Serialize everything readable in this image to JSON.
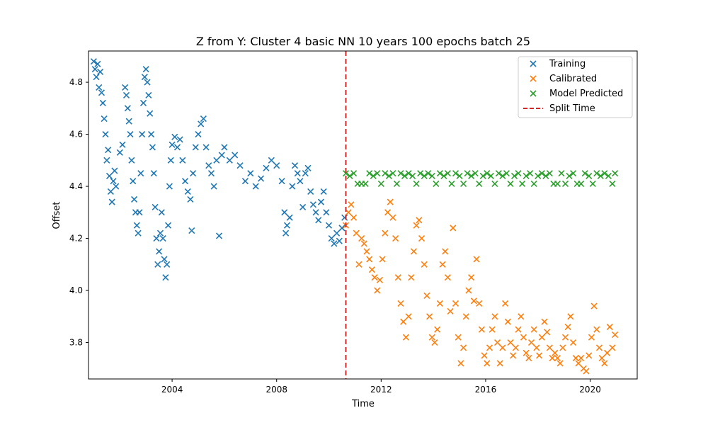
{
  "chart_data": {
    "type": "scatter",
    "title": "Z from Y: Cluster 4 basic NN 10 years 100 epochs batch 25",
    "xlabel": "Time",
    "ylabel": "Offset",
    "xlim": [
      2000.8,
      2021.8
    ],
    "ylim": [
      3.66,
      4.92
    ],
    "xticks": [
      2004,
      2008,
      2012,
      2016,
      2020
    ],
    "yticks": [
      3.8,
      4.0,
      4.2,
      4.4,
      4.6,
      4.8
    ],
    "grid": false,
    "legend_position": "top-right",
    "split_time": {
      "label": "Split Time",
      "x": 2010.65,
      "color": "#d62728"
    },
    "series": [
      {
        "name": "Training",
        "color": "#1f77b4",
        "marker": "x",
        "points": [
          [
            2001.0,
            4.88
          ],
          [
            2001.05,
            4.85
          ],
          [
            2001.1,
            4.82
          ],
          [
            2001.15,
            4.87
          ],
          [
            2001.2,
            4.78
          ],
          [
            2001.25,
            4.84
          ],
          [
            2001.3,
            4.76
          ],
          [
            2001.35,
            4.72
          ],
          [
            2001.4,
            4.66
          ],
          [
            2001.45,
            4.6
          ],
          [
            2001.5,
            4.5
          ],
          [
            2001.55,
            4.54
          ],
          [
            2001.6,
            4.44
          ],
          [
            2001.65,
            4.38
          ],
          [
            2001.7,
            4.34
          ],
          [
            2001.75,
            4.42
          ],
          [
            2001.8,
            4.46
          ],
          [
            2001.85,
            4.4
          ],
          [
            2002.0,
            4.53
          ],
          [
            2002.1,
            4.56
          ],
          [
            2002.2,
            4.78
          ],
          [
            2002.25,
            4.75
          ],
          [
            2002.3,
            4.7
          ],
          [
            2002.35,
            4.65
          ],
          [
            2002.4,
            4.6
          ],
          [
            2002.45,
            4.5
          ],
          [
            2002.5,
            4.42
          ],
          [
            2002.55,
            4.35
          ],
          [
            2002.6,
            4.3
          ],
          [
            2002.65,
            4.25
          ],
          [
            2002.7,
            4.22
          ],
          [
            2002.75,
            4.3
          ],
          [
            2002.8,
            4.45
          ],
          [
            2002.85,
            4.6
          ],
          [
            2002.9,
            4.72
          ],
          [
            2002.95,
            4.82
          ],
          [
            2003.0,
            4.85
          ],
          [
            2003.05,
            4.8
          ],
          [
            2003.1,
            4.75
          ],
          [
            2003.15,
            4.68
          ],
          [
            2003.2,
            4.6
          ],
          [
            2003.25,
            4.55
          ],
          [
            2003.3,
            4.45
          ],
          [
            2003.35,
            4.32
          ],
          [
            2003.4,
            4.2
          ],
          [
            2003.45,
            4.1
          ],
          [
            2003.5,
            4.15
          ],
          [
            2003.55,
            4.22
          ],
          [
            2003.6,
            4.3
          ],
          [
            2003.65,
            4.2
          ],
          [
            2003.7,
            4.12
          ],
          [
            2003.75,
            4.05
          ],
          [
            2003.8,
            4.1
          ],
          [
            2003.85,
            4.25
          ],
          [
            2003.9,
            4.4
          ],
          [
            2003.95,
            4.5
          ],
          [
            2004.0,
            4.56
          ],
          [
            2004.1,
            4.59
          ],
          [
            2004.2,
            4.55
          ],
          [
            2004.3,
            4.58
          ],
          [
            2004.4,
            4.5
          ],
          [
            2004.5,
            4.42
          ],
          [
            2004.6,
            4.38
          ],
          [
            2004.7,
            4.35
          ],
          [
            2004.75,
            4.23
          ],
          [
            2004.8,
            4.45
          ],
          [
            2004.9,
            4.55
          ],
          [
            2005.0,
            4.6
          ],
          [
            2005.1,
            4.64
          ],
          [
            2005.2,
            4.66
          ],
          [
            2005.3,
            4.55
          ],
          [
            2005.4,
            4.48
          ],
          [
            2005.5,
            4.45
          ],
          [
            2005.6,
            4.4
          ],
          [
            2005.7,
            4.5
          ],
          [
            2005.8,
            4.21
          ],
          [
            2005.9,
            4.52
          ],
          [
            2006.0,
            4.55
          ],
          [
            2006.2,
            4.5
          ],
          [
            2006.4,
            4.52
          ],
          [
            2006.6,
            4.48
          ],
          [
            2006.8,
            4.42
          ],
          [
            2007.0,
            4.45
          ],
          [
            2007.2,
            4.4
          ],
          [
            2007.4,
            4.43
          ],
          [
            2007.6,
            4.47
          ],
          [
            2007.8,
            4.5
          ],
          [
            2008.0,
            4.48
          ],
          [
            2008.2,
            4.42
          ],
          [
            2008.3,
            4.3
          ],
          [
            2008.35,
            4.22
          ],
          [
            2008.4,
            4.25
          ],
          [
            2008.5,
            4.28
          ],
          [
            2008.6,
            4.4
          ],
          [
            2008.7,
            4.48
          ],
          [
            2008.8,
            4.45
          ],
          [
            2008.9,
            4.42
          ],
          [
            2009.0,
            4.32
          ],
          [
            2009.1,
            4.45
          ],
          [
            2009.2,
            4.47
          ],
          [
            2009.3,
            4.38
          ],
          [
            2009.4,
            4.33
          ],
          [
            2009.5,
            4.3
          ],
          [
            2009.6,
            4.27
          ],
          [
            2009.7,
            4.34
          ],
          [
            2009.8,
            4.38
          ],
          [
            2009.9,
            4.3
          ],
          [
            2010.0,
            4.25
          ],
          [
            2010.1,
            4.2
          ],
          [
            2010.2,
            4.18
          ],
          [
            2010.3,
            4.22
          ],
          [
            2010.4,
            4.19
          ],
          [
            2010.5,
            4.24
          ],
          [
            2010.6,
            4.28
          ]
        ]
      },
      {
        "name": "Calibrated",
        "color": "#ff7f0e",
        "marker": "x",
        "points": [
          [
            2010.65,
            4.25
          ],
          [
            2010.75,
            4.3
          ],
          [
            2010.85,
            4.33
          ],
          [
            2010.95,
            4.28
          ],
          [
            2011.05,
            4.22
          ],
          [
            2011.15,
            4.1
          ],
          [
            2011.25,
            4.2
          ],
          [
            2011.35,
            4.18
          ],
          [
            2011.45,
            4.15
          ],
          [
            2011.55,
            4.12
          ],
          [
            2011.65,
            4.08
          ],
          [
            2011.75,
            4.05
          ],
          [
            2011.85,
            4.0
          ],
          [
            2011.95,
            4.04
          ],
          [
            2012.05,
            4.12
          ],
          [
            2012.15,
            4.22
          ],
          [
            2012.25,
            4.3
          ],
          [
            2012.35,
            4.34
          ],
          [
            2012.45,
            4.28
          ],
          [
            2012.55,
            4.2
          ],
          [
            2012.65,
            4.05
          ],
          [
            2012.75,
            3.95
          ],
          [
            2012.85,
            3.88
          ],
          [
            2012.95,
            3.82
          ],
          [
            2013.05,
            3.9
          ],
          [
            2013.15,
            4.05
          ],
          [
            2013.25,
            4.15
          ],
          [
            2013.35,
            4.25
          ],
          [
            2013.45,
            4.27
          ],
          [
            2013.55,
            4.2
          ],
          [
            2013.65,
            4.1
          ],
          [
            2013.75,
            3.98
          ],
          [
            2013.85,
            3.9
          ],
          [
            2013.95,
            3.82
          ],
          [
            2014.05,
            3.8
          ],
          [
            2014.15,
            3.85
          ],
          [
            2014.25,
            3.95
          ],
          [
            2014.35,
            4.1
          ],
          [
            2014.45,
            4.15
          ],
          [
            2014.55,
            4.05
          ],
          [
            2014.65,
            3.92
          ],
          [
            2014.75,
            4.24
          ],
          [
            2014.85,
            3.95
          ],
          [
            2014.95,
            3.82
          ],
          [
            2015.05,
            3.72
          ],
          [
            2015.15,
            3.78
          ],
          [
            2015.25,
            3.9
          ],
          [
            2015.35,
            4.0
          ],
          [
            2015.45,
            4.05
          ],
          [
            2015.55,
            3.96
          ],
          [
            2015.65,
            4.12
          ],
          [
            2015.75,
            3.95
          ],
          [
            2015.85,
            3.85
          ],
          [
            2015.95,
            3.75
          ],
          [
            2016.05,
            3.72
          ],
          [
            2016.15,
            3.78
          ],
          [
            2016.25,
            3.85
          ],
          [
            2016.35,
            3.9
          ],
          [
            2016.45,
            3.8
          ],
          [
            2016.55,
            3.72
          ],
          [
            2016.65,
            3.78
          ],
          [
            2016.75,
            3.95
          ],
          [
            2016.85,
            3.88
          ],
          [
            2016.95,
            3.8
          ],
          [
            2017.05,
            3.75
          ],
          [
            2017.15,
            3.78
          ],
          [
            2017.25,
            3.85
          ],
          [
            2017.35,
            3.9
          ],
          [
            2017.45,
            3.82
          ],
          [
            2017.55,
            3.76
          ],
          [
            2017.65,
            3.74
          ],
          [
            2017.75,
            3.8
          ],
          [
            2017.85,
            3.85
          ],
          [
            2017.95,
            3.78
          ],
          [
            2018.05,
            3.75
          ],
          [
            2018.15,
            3.82
          ],
          [
            2018.25,
            3.88
          ],
          [
            2018.35,
            3.84
          ],
          [
            2018.45,
            3.78
          ],
          [
            2018.55,
            3.74
          ],
          [
            2018.65,
            3.76
          ],
          [
            2018.75,
            3.74
          ],
          [
            2018.85,
            3.72
          ],
          [
            2018.95,
            3.78
          ],
          [
            2019.05,
            3.82
          ],
          [
            2019.15,
            3.86
          ],
          [
            2019.25,
            3.9
          ],
          [
            2019.35,
            3.8
          ],
          [
            2019.45,
            3.74
          ],
          [
            2019.55,
            3.72
          ],
          [
            2019.65,
            3.74
          ],
          [
            2019.75,
            3.7
          ],
          [
            2019.85,
            3.69
          ],
          [
            2019.95,
            3.75
          ],
          [
            2020.05,
            3.82
          ],
          [
            2020.15,
            3.94
          ],
          [
            2020.25,
            3.85
          ],
          [
            2020.35,
            3.78
          ],
          [
            2020.45,
            3.74
          ],
          [
            2020.55,
            3.72
          ],
          [
            2020.65,
            3.76
          ],
          [
            2020.75,
            3.86
          ],
          [
            2020.85,
            3.78
          ],
          [
            2020.95,
            3.83
          ]
        ]
      },
      {
        "name": "Model Predicted",
        "color": "#2ca02c",
        "marker": "x",
        "points": [
          [
            2010.65,
            4.45
          ],
          [
            2010.8,
            4.44
          ],
          [
            2010.95,
            4.45
          ],
          [
            2011.1,
            4.41
          ],
          [
            2011.25,
            4.41
          ],
          [
            2011.4,
            4.41
          ],
          [
            2011.55,
            4.45
          ],
          [
            2011.7,
            4.44
          ],
          [
            2011.85,
            4.45
          ],
          [
            2012.0,
            4.41
          ],
          [
            2012.15,
            4.45
          ],
          [
            2012.3,
            4.44
          ],
          [
            2012.45,
            4.45
          ],
          [
            2012.6,
            4.41
          ],
          [
            2012.75,
            4.45
          ],
          [
            2012.9,
            4.44
          ],
          [
            2013.05,
            4.45
          ],
          [
            2013.2,
            4.44
          ],
          [
            2013.35,
            4.41
          ],
          [
            2013.5,
            4.45
          ],
          [
            2013.65,
            4.44
          ],
          [
            2013.8,
            4.45
          ],
          [
            2013.95,
            4.44
          ],
          [
            2014.1,
            4.41
          ],
          [
            2014.25,
            4.45
          ],
          [
            2014.4,
            4.44
          ],
          [
            2014.55,
            4.45
          ],
          [
            2014.7,
            4.41
          ],
          [
            2014.85,
            4.45
          ],
          [
            2015.0,
            4.44
          ],
          [
            2015.15,
            4.41
          ],
          [
            2015.3,
            4.45
          ],
          [
            2015.45,
            4.44
          ],
          [
            2015.6,
            4.45
          ],
          [
            2015.75,
            4.41
          ],
          [
            2015.9,
            4.44
          ],
          [
            2016.05,
            4.45
          ],
          [
            2016.2,
            4.44
          ],
          [
            2016.35,
            4.41
          ],
          [
            2016.5,
            4.45
          ],
          [
            2016.65,
            4.44
          ],
          [
            2016.8,
            4.45
          ],
          [
            2016.95,
            4.41
          ],
          [
            2017.1,
            4.44
          ],
          [
            2017.25,
            4.45
          ],
          [
            2017.4,
            4.41
          ],
          [
            2017.55,
            4.44
          ],
          [
            2017.7,
            4.45
          ],
          [
            2017.85,
            4.41
          ],
          [
            2018.0,
            4.44
          ],
          [
            2018.15,
            4.45
          ],
          [
            2018.3,
            4.44
          ],
          [
            2018.45,
            4.45
          ],
          [
            2018.6,
            4.41
          ],
          [
            2018.75,
            4.41
          ],
          [
            2018.9,
            4.45
          ],
          [
            2019.05,
            4.41
          ],
          [
            2019.2,
            4.44
          ],
          [
            2019.35,
            4.45
          ],
          [
            2019.5,
            4.41
          ],
          [
            2019.65,
            4.41
          ],
          [
            2019.8,
            4.45
          ],
          [
            2019.95,
            4.44
          ],
          [
            2020.1,
            4.41
          ],
          [
            2020.25,
            4.45
          ],
          [
            2020.4,
            4.44
          ],
          [
            2020.55,
            4.45
          ],
          [
            2020.7,
            4.44
          ],
          [
            2020.85,
            4.41
          ],
          [
            2020.95,
            4.45
          ]
        ]
      }
    ]
  }
}
